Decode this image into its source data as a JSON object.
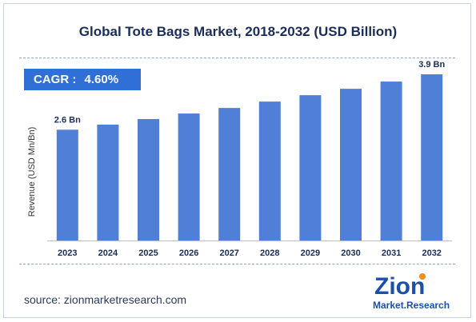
{
  "title": "Global Tote Bags Market, 2018-2032 (USD Billion)",
  "cagr": {
    "label": "CAGR :",
    "value": "4.60%"
  },
  "source": "source: zionmarketresearch.com",
  "logo": {
    "line1": "Zion",
    "line2": "Market.Research"
  },
  "colors": {
    "bar": "#4f7fd6",
    "title": "#1a2d5a",
    "cagr_box": "#2f6fd6",
    "logo_blue": "#1e4fa8",
    "logo_orange": "#f28c1c"
  },
  "chart_data": {
    "type": "bar",
    "title": "Global Tote Bags Market, 2018-2032 (USD Billion)",
    "xlabel": "",
    "ylabel": "Revenue (USD Mn/Bn)",
    "categories": [
      "2023",
      "2024",
      "2025",
      "2026",
      "2027",
      "2028",
      "2029",
      "2030",
      "2031",
      "2032"
    ],
    "values": [
      2.6,
      2.72,
      2.85,
      2.98,
      3.11,
      3.26,
      3.41,
      3.56,
      3.73,
      3.9
    ],
    "data_labels": [
      {
        "index": 0,
        "text": "2.6 Bn"
      },
      {
        "index": 9,
        "text": "3.9 Bn"
      }
    ],
    "ylim": [
      0,
      4.2
    ],
    "grid": false,
    "legend": "none"
  }
}
